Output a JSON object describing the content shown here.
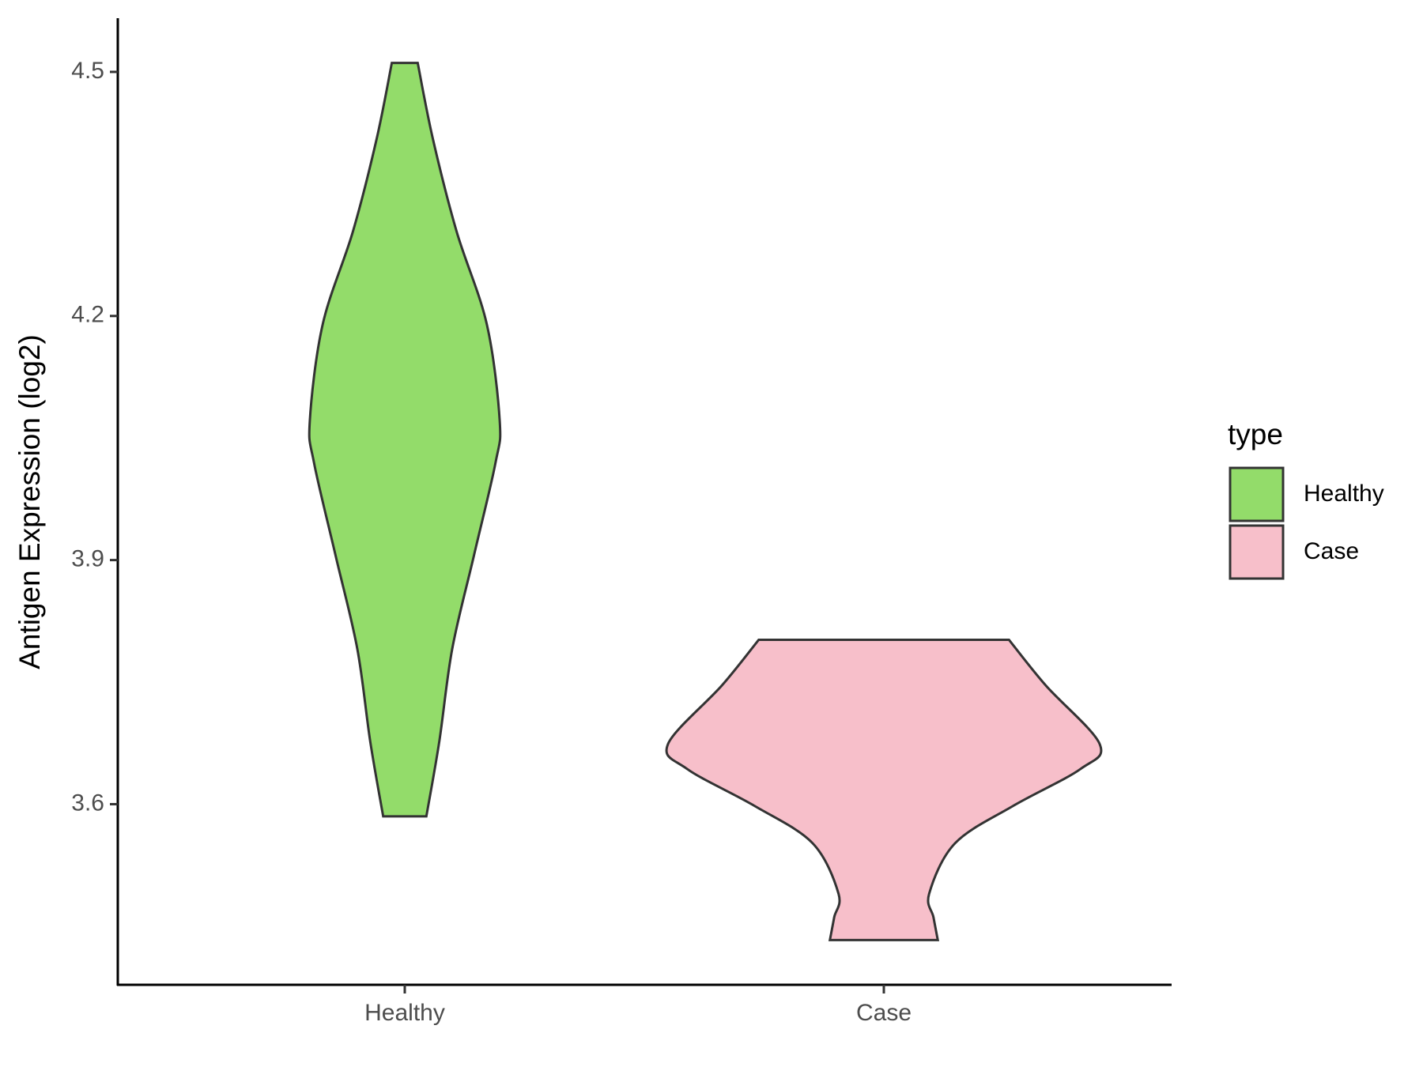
{
  "chart_data": {
    "type": "violin",
    "y_label": "Antigen Expression (log2)",
    "categories": [
      "Healthy",
      "Case"
    ],
    "ylim": [
      3.378,
      4.566
    ],
    "yticks": [
      3.6,
      3.9,
      4.2,
      4.5
    ],
    "legend_title": "type",
    "legend_position": "right",
    "series": [
      {
        "name": "Healthy",
        "color": "#93dc6a",
        "y": [
          4.511,
          4.418,
          4.304,
          4.19,
          4.071,
          4.019,
          3.905,
          3.791,
          3.677,
          3.585
        ],
        "density": [
          0.06,
          0.13,
          0.24,
          0.38,
          0.44,
          0.42,
          0.32,
          0.22,
          0.16,
          0.1
        ]
      },
      {
        "name": "Case",
        "color": "#f7bfca",
        "y": [
          3.802,
          3.746,
          3.674,
          3.643,
          3.598,
          3.552,
          3.49,
          3.461,
          3.433
        ],
        "density": [
          0.58,
          0.75,
          1,
          0.91,
          0.6,
          0.33,
          0.21,
          0.23,
          0.25
        ]
      }
    ]
  }
}
